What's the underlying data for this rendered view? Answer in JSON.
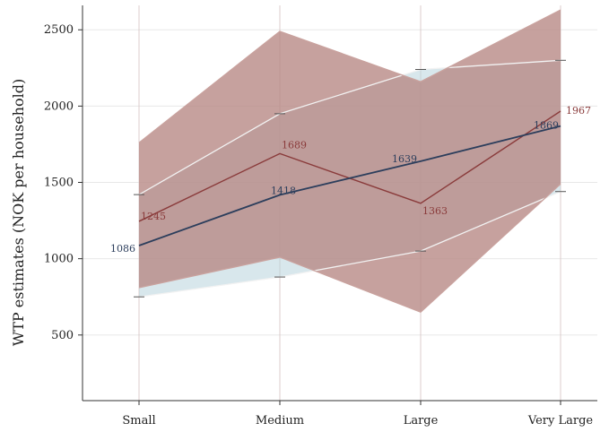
{
  "chart_data": {
    "type": "line",
    "title": "",
    "xlabel": "",
    "ylabel": "WTP estimates (NOK per household)",
    "categories": [
      "Small",
      "Medium",
      "Large",
      "Very Large"
    ],
    "yticks": [
      500,
      1000,
      1500,
      2000,
      2500
    ],
    "ylim": [
      70,
      2660
    ],
    "grid": true,
    "legend": "none",
    "series": [
      {
        "values": [
          1086,
          1418,
          1639,
          1869
        ],
        "ci_lower": [
          750,
          880,
          1050,
          1440
        ],
        "ci_upper": [
          1420,
          1950,
          2240,
          2300
        ],
        "line_color": "#2c3e5c",
        "band_color": "#b8d3dd",
        "label_color": "#2c3e5c"
      },
      {
        "values": [
          1245,
          1689,
          1363,
          1967
        ],
        "ci_lower": [
          810,
          1010,
          650,
          1490
        ],
        "ci_upper": [
          1760,
          2490,
          2160,
          2630
        ],
        "line_color": "#8a3b3b",
        "band_color": "#b88a86",
        "label_color": "#8a3b3b"
      }
    ]
  }
}
